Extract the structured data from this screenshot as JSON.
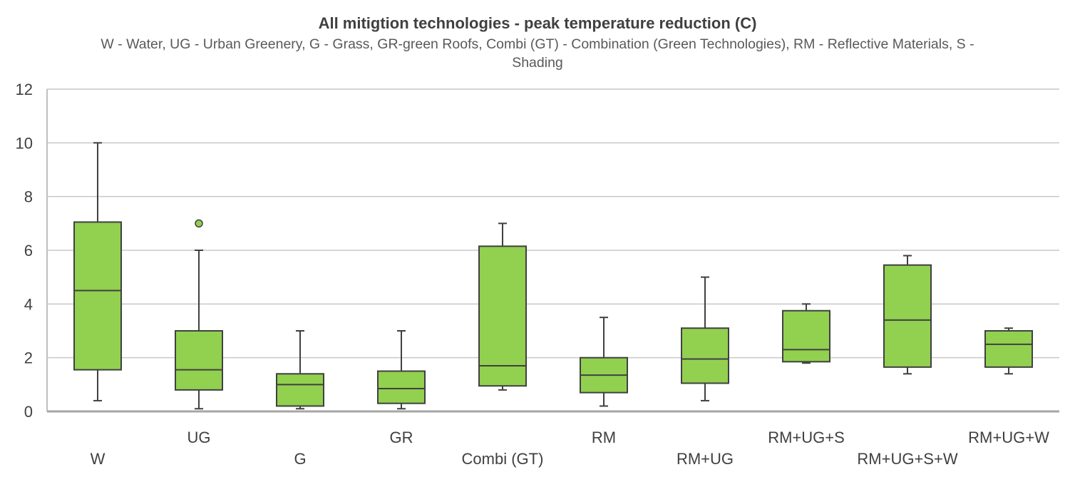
{
  "chart_data": {
    "type": "box",
    "title": "All mitigtion technologies - peak temperature reduction (C)",
    "subtitle": "W - Water, UG - Urban Greenery, G - Grass, GR-green Roofs, Combi (GT) - Combination (Green Technologies), RM - Reflective Materials, S - Shading",
    "ylim": [
      0,
      12
    ],
    "yticks": [
      0,
      2,
      4,
      6,
      8,
      10,
      12
    ],
    "grid": true,
    "colors": {
      "box_fill": "#92D050",
      "stroke": "#404040",
      "grid": "#C8C8C8"
    },
    "categories": [
      "W",
      "UG",
      "G",
      "GR",
      "Combi (GT)",
      "RM",
      "RM+UG",
      "RM+UG+S",
      "RM+UG+S+W",
      "RM+UG+W"
    ],
    "boxes": [
      {
        "label": "W",
        "min": 0.4,
        "q1": 1.55,
        "median": 4.5,
        "q3": 7.05,
        "max": 10.0,
        "outliers": []
      },
      {
        "label": "UG",
        "min": 0.1,
        "q1": 0.8,
        "median": 1.55,
        "q3": 3.0,
        "max": 6.0,
        "outliers": [
          7.0
        ]
      },
      {
        "label": "G",
        "min": 0.1,
        "q1": 0.2,
        "median": 1.0,
        "q3": 1.4,
        "max": 3.0,
        "outliers": []
      },
      {
        "label": "GR",
        "min": 0.1,
        "q1": 0.3,
        "median": 0.85,
        "q3": 1.5,
        "max": 3.0,
        "outliers": []
      },
      {
        "label": "Combi (GT)",
        "min": 0.8,
        "q1": 0.95,
        "median": 1.7,
        "q3": 6.15,
        "max": 7.0,
        "outliers": []
      },
      {
        "label": "RM",
        "min": 0.2,
        "q1": 0.7,
        "median": 1.35,
        "q3": 2.0,
        "max": 3.5,
        "outliers": []
      },
      {
        "label": "RM+UG",
        "min": 0.4,
        "q1": 1.05,
        "median": 1.95,
        "q3": 3.1,
        "max": 5.0,
        "outliers": []
      },
      {
        "label": "RM+UG+S",
        "min": 1.8,
        "q1": 1.85,
        "median": 2.3,
        "q3": 3.75,
        "max": 4.0,
        "outliers": []
      },
      {
        "label": "RM+UG+S+W",
        "min": 1.4,
        "q1": 1.65,
        "median": 3.4,
        "q3": 5.45,
        "max": 5.8,
        "outliers": []
      },
      {
        "label": "RM+UG+W",
        "min": 1.4,
        "q1": 1.65,
        "median": 2.5,
        "q3": 3.0,
        "max": 3.1,
        "outliers": []
      }
    ]
  }
}
